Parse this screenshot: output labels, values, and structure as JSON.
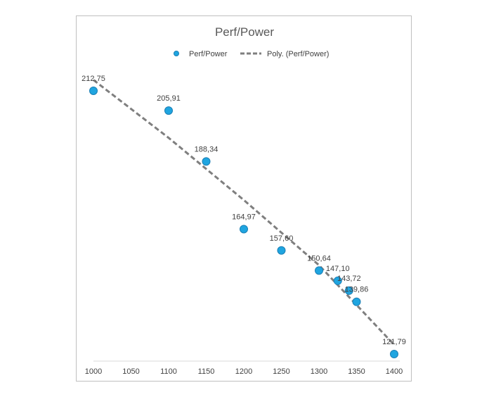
{
  "chart_data": {
    "type": "scatter",
    "title": "Perf/Power",
    "xlabel": "",
    "ylabel": "",
    "xlim": [
      1000,
      1400
    ],
    "ylim": [
      120,
      215
    ],
    "x_ticks": [
      "1000",
      "1050",
      "1100",
      "1150",
      "1200",
      "1250",
      "1300",
      "1350",
      "1400"
    ],
    "grid": false,
    "legend_position": "top",
    "series": [
      {
        "name": "Perf/Power",
        "color": "#1fa5e0",
        "points": [
          {
            "x": 1000,
            "y": 212.75,
            "label": "212,75"
          },
          {
            "x": 1100,
            "y": 205.91,
            "label": "205,91"
          },
          {
            "x": 1150,
            "y": 188.34,
            "label": "188,34"
          },
          {
            "x": 1200,
            "y": 164.97,
            "label": "164,97"
          },
          {
            "x": 1250,
            "y": 157.6,
            "label": "157,60"
          },
          {
            "x": 1300,
            "y": 150.64,
            "label": "150,64"
          },
          {
            "x": 1325,
            "y": 147.1,
            "label": "147,10"
          },
          {
            "x": 1340,
            "y": 143.72,
            "label": "143,72"
          },
          {
            "x": 1350,
            "y": 139.86,
            "label": "139,86"
          },
          {
            "x": 1400,
            "y": 121.79,
            "label": "121,79"
          }
        ]
      }
    ],
    "trendline": {
      "name": "Poly. (Perf/Power)",
      "type": "polynomial",
      "style": "dashed",
      "color": "#7f7f7f",
      "points": [
        {
          "x": 1000,
          "y": 216.5
        },
        {
          "x": 1100,
          "y": 196.5
        },
        {
          "x": 1200,
          "y": 175.0
        },
        {
          "x": 1300,
          "y": 152.5
        },
        {
          "x": 1400,
          "y": 125.0
        }
      ]
    }
  }
}
